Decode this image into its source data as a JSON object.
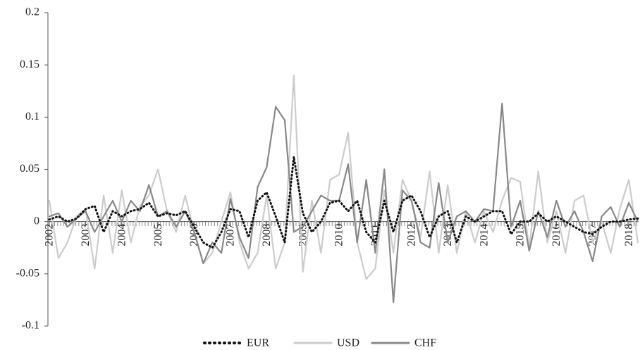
{
  "chart_data": {
    "type": "line",
    "x": [
      2002,
      2002.25,
      2002.5,
      2002.75,
      2003,
      2003.25,
      2003.5,
      2003.75,
      2004,
      2004.25,
      2004.5,
      2004.75,
      2005,
      2005.25,
      2005.5,
      2005.75,
      2006,
      2006.25,
      2006.5,
      2006.75,
      2007,
      2007.25,
      2007.5,
      2007.75,
      2008,
      2008.25,
      2008.5,
      2008.75,
      2009,
      2009.25,
      2009.5,
      2009.75,
      2010,
      2010.25,
      2010.5,
      2010.75,
      2011,
      2011.25,
      2011.5,
      2011.75,
      2012,
      2012.25,
      2012.5,
      2012.75,
      2013,
      2013.25,
      2013.5,
      2013.75,
      2014,
      2014.25,
      2014.5,
      2014.75,
      2015,
      2015.25,
      2015.5,
      2015.75,
      2016,
      2016.25,
      2016.5,
      2016.75,
      2017,
      2017.25,
      2017.5,
      2017.75,
      2018,
      2018.25
    ],
    "xlim": [
      2002,
      2018.25
    ],
    "xticks": [
      2002,
      2003,
      2004,
      2005,
      2006,
      2007,
      2008,
      2009,
      2010,
      2011,
      2012,
      2013,
      2014,
      2015,
      2016,
      2017,
      2018
    ],
    "ylim": [
      -0.1,
      0.2
    ],
    "yticks": [
      0.2,
      0.15,
      0.1,
      0.05,
      0,
      -0.05,
      -0.1
    ],
    "series": [
      {
        "name": "EUR",
        "color": "#111111",
        "values": [
          0.002,
          0.005,
          0.0,
          0.003,
          0.012,
          0.015,
          -0.01,
          0.01,
          0.005,
          0.01,
          0.012,
          0.018,
          0.005,
          0.008,
          0.006,
          0.01,
          -0.005,
          -0.02,
          -0.025,
          -0.01,
          0.012,
          0.01,
          -0.015,
          0.02,
          0.028,
          0.005,
          -0.02,
          0.062,
          0.008,
          -0.01,
          0.0,
          0.018,
          0.02,
          0.01,
          0.02,
          -0.01,
          -0.02,
          0.02,
          -0.01,
          0.02,
          0.025,
          0.01,
          -0.015,
          0.005,
          0.01,
          -0.02,
          0.005,
          0.0,
          0.005,
          0.01,
          0.01,
          -0.012,
          0.0,
          0.0,
          0.008,
          0.0,
          0.005,
          0.0,
          -0.005,
          -0.01,
          -0.012,
          -0.005,
          0.0,
          0.0,
          0.002,
          0.003
        ]
      },
      {
        "name": "USD",
        "color": "#cccccc",
        "values": [
          0.02,
          -0.035,
          -0.02,
          0.005,
          0.012,
          -0.045,
          0.025,
          -0.03,
          0.03,
          -0.02,
          0.015,
          0.025,
          0.05,
          0.01,
          -0.01,
          0.025,
          -0.01,
          -0.04,
          -0.03,
          0.0,
          0.028,
          -0.02,
          -0.045,
          -0.03,
          0.025,
          -0.045,
          -0.02,
          0.14,
          -0.048,
          0.02,
          -0.03,
          0.04,
          0.045,
          0.085,
          -0.02,
          -0.055,
          -0.045,
          0.03,
          -0.03,
          0.04,
          0.02,
          -0.015,
          0.048,
          -0.03,
          0.035,
          -0.03,
          0.01,
          -0.02,
          0.01,
          -0.01,
          0.02,
          0.042,
          0.038,
          -0.025,
          0.048,
          -0.02,
          0.01,
          -0.03,
          0.02,
          0.025,
          -0.02,
          0.0,
          -0.03,
          0.012,
          0.04,
          -0.02
        ]
      },
      {
        "name": "CHF",
        "color": "#888888",
        "values": [
          0.005,
          0.008,
          -0.005,
          0.003,
          0.01,
          -0.01,
          0.005,
          0.02,
          0.0,
          0.02,
          0.01,
          0.035,
          0.005,
          0.01,
          -0.005,
          0.01,
          -0.01,
          -0.04,
          -0.02,
          -0.03,
          0.022,
          -0.015,
          -0.035,
          0.033,
          0.052,
          0.11,
          0.097,
          -0.01,
          -0.005,
          0.01,
          0.025,
          0.02,
          0.02,
          0.055,
          -0.02,
          0.04,
          -0.03,
          0.05,
          -0.077,
          0.03,
          0.02,
          -0.02,
          -0.025,
          0.037,
          -0.02,
          0.005,
          0.01,
          0.0,
          0.012,
          0.01,
          0.113,
          -0.005,
          0.02,
          -0.028,
          0.01,
          -0.015,
          0.02,
          -0.005,
          0.01,
          -0.01,
          -0.038,
          0.005,
          0.014,
          -0.005,
          0.018,
          0.0
        ]
      }
    ]
  }
}
